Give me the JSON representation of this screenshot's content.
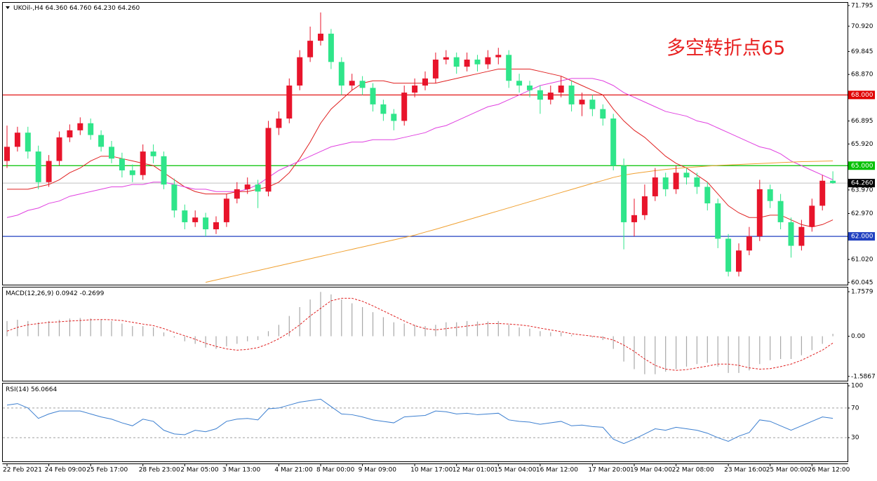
{
  "chart_data": [
    {
      "type": "candlestick",
      "symbol": "UKOil-,H4",
      "ohlc_labels": [
        "64.360",
        "64.760",
        "64.230",
        "64.260"
      ],
      "annotation": "多空转折点65",
      "annotation_color": "#e82020",
      "up_color": "#e8142b",
      "down_color": "#2fe58a",
      "categories": [
        "22 Feb 2021",
        null,
        null,
        null,
        "24 Feb 09:00",
        null,
        null,
        null,
        "25 Feb 17:00",
        null,
        null,
        null,
        null,
        "28 Feb 23:00",
        null,
        null,
        null,
        "2 Mar 05:00",
        null,
        null,
        null,
        "3 Mar 13:00",
        null,
        null,
        null,
        null,
        "4 Mar 21:00",
        null,
        null,
        null,
        "8 Mar 00:00",
        null,
        null,
        null,
        "9 Mar 09:00",
        null,
        null,
        null,
        null,
        "10 Mar 17:00",
        null,
        null,
        null,
        "12 Mar 01:00",
        null,
        null,
        null,
        "15 Mar 04:00",
        null,
        null,
        null,
        "16 Mar 12:00",
        null,
        null,
        null,
        null,
        "17 Mar 20:00",
        null,
        null,
        null,
        "19 Mar 04:00",
        null,
        null,
        null,
        "22 Mar 08:00",
        null,
        null,
        null,
        null,
        "23 Mar 16:00",
        null,
        null,
        null,
        "25 Mar 00:00",
        null,
        null,
        null,
        "26 Mar 12:00",
        null,
        null
      ],
      "open": [
        65.2,
        65.8,
        66.4,
        65.6,
        64.3,
        65.2,
        66.2,
        66.5,
        66.8,
        66.3,
        65.8,
        65.3,
        64.8,
        64.6,
        65.6,
        65.4,
        64.2,
        63.1,
        62.6,
        62.8,
        62.3,
        62.6,
        63.6,
        64.0,
        64.2,
        63.9,
        66.6,
        67.0,
        68.4,
        69.6,
        70.3,
        70.6,
        69.4,
        68.4,
        68.6,
        68.3,
        67.6,
        67.2,
        66.9,
        68.1,
        68.4,
        68.7,
        69.5,
        69.6,
        69.2,
        69.5,
        69.3,
        69.6,
        69.7,
        68.6,
        68.4,
        68.2,
        67.8,
        68.1,
        68.4,
        67.6,
        67.8,
        67.4,
        67.0,
        65.0,
        62.6,
        62.9,
        63.7,
        64.5,
        64.0,
        64.7,
        64.5,
        64.1,
        63.4,
        61.9,
        60.5,
        61.4,
        62.0,
        64.0,
        63.5,
        62.6,
        61.6,
        62.4,
        63.3,
        64.36
      ],
      "high": [
        66.7,
        66.65,
        66.65,
        65.85,
        65.45,
        66.45,
        66.75,
        67.05,
        67.0,
        66.5,
        66.05,
        65.55,
        65.05,
        65.9,
        65.9,
        65.6,
        64.45,
        63.35,
        63.1,
        63.0,
        62.85,
        63.8,
        64.3,
        64.5,
        64.4,
        66.9,
        67.3,
        68.7,
        69.9,
        70.9,
        71.5,
        70.8,
        69.6,
        68.9,
        68.8,
        68.5,
        67.8,
        67.4,
        68.4,
        68.7,
        69.0,
        69.8,
        69.9,
        69.8,
        69.8,
        69.7,
        69.9,
        70.0,
        69.9,
        68.9,
        68.6,
        68.4,
        68.4,
        68.8,
        68.6,
        68.1,
        68.0,
        67.6,
        67.2,
        65.3,
        63.6,
        64.2,
        64.9,
        64.7,
        65.0,
        64.9,
        64.7,
        64.3,
        63.6,
        62.1,
        61.7,
        62.4,
        64.4,
        64.2,
        63.8,
        62.8,
        62.7,
        63.6,
        64.6,
        64.76
      ],
      "low": [
        64.9,
        65.6,
        65.3,
        64.0,
        64.1,
        65.0,
        66.0,
        66.3,
        66.1,
        65.6,
        65.1,
        64.5,
        64.3,
        64.4,
        65.1,
        64.0,
        62.8,
        62.3,
        62.4,
        62.0,
        62.1,
        62.4,
        63.4,
        63.8,
        63.2,
        63.7,
        66.3,
        66.8,
        68.2,
        69.4,
        70.1,
        69.1,
        68.0,
        68.2,
        68.0,
        67.3,
        66.9,
        66.5,
        66.7,
        67.9,
        68.2,
        68.5,
        69.3,
        68.9,
        69.0,
        69.0,
        69.1,
        69.3,
        68.3,
        68.1,
        67.9,
        67.2,
        67.6,
        67.9,
        67.3,
        67.1,
        67.1,
        66.7,
        64.8,
        61.45,
        62.0,
        62.7,
        63.5,
        63.7,
        63.8,
        64.2,
        63.8,
        63.1,
        61.5,
        60.3,
        60.3,
        61.2,
        61.8,
        63.2,
        62.3,
        61.1,
        61.4,
        62.2,
        63.1,
        64.23
      ],
      "close": [
        65.8,
        66.4,
        65.6,
        64.3,
        65.2,
        66.2,
        66.5,
        66.8,
        66.3,
        65.8,
        65.3,
        64.8,
        64.6,
        65.6,
        65.4,
        64.2,
        63.1,
        62.6,
        62.8,
        62.3,
        62.6,
        63.6,
        64.0,
        64.2,
        63.9,
        66.6,
        67.0,
        68.4,
        69.6,
        70.3,
        70.6,
        69.4,
        68.4,
        68.6,
        68.3,
        67.6,
        67.2,
        66.9,
        68.1,
        68.4,
        68.7,
        69.5,
        69.6,
        69.2,
        69.5,
        69.3,
        69.6,
        69.7,
        68.6,
        68.4,
        68.2,
        67.8,
        68.1,
        68.4,
        67.6,
        67.8,
        67.4,
        67.0,
        65.0,
        62.6,
        62.9,
        63.7,
        64.5,
        64.0,
        64.7,
        64.5,
        64.1,
        63.4,
        61.9,
        60.5,
        61.4,
        62.0,
        64.0,
        63.5,
        62.6,
        61.6,
        62.4,
        63.3,
        64.36,
        64.26
      ],
      "series": [
        {
          "color": "#e02020",
          "values": [
            64.0,
            64.0,
            64.0,
            64.1,
            64.2,
            64.4,
            64.7,
            64.9,
            65.2,
            65.4,
            65.4,
            65.3,
            65.2,
            65.1,
            65.0,
            64.7,
            64.4,
            64.1,
            63.9,
            63.8,
            63.8,
            63.8,
            63.9,
            63.9,
            64.0,
            64.1,
            64.3,
            64.7,
            65.3,
            66.0,
            66.8,
            67.4,
            67.8,
            68.2,
            68.5,
            68.6,
            68.6,
            68.5,
            68.5,
            68.5,
            68.5,
            68.5,
            68.6,
            68.7,
            68.8,
            68.9,
            69.0,
            69.1,
            69.1,
            69.1,
            69.1,
            69.0,
            68.9,
            68.8,
            68.6,
            68.4,
            68.2,
            68.0,
            67.4,
            66.9,
            66.5,
            66.2,
            65.8,
            65.4,
            65.1,
            64.9,
            64.6,
            64.3,
            63.8,
            63.3,
            63.0,
            62.8,
            62.8,
            62.9,
            62.9,
            62.7,
            62.5,
            62.4,
            62.5,
            62.7
          ]
        },
        {
          "color": "#e040e0",
          "values": [
            62.8,
            62.9,
            63.1,
            63.2,
            63.4,
            63.5,
            63.7,
            63.8,
            63.9,
            64.0,
            64.1,
            64.1,
            64.2,
            64.2,
            64.3,
            64.3,
            64.2,
            64.1,
            64.0,
            64.0,
            63.9,
            63.9,
            63.9,
            64.0,
            64.2,
            64.5,
            64.8,
            65.0,
            65.2,
            65.4,
            65.6,
            65.8,
            65.9,
            66.0,
            66.0,
            66.1,
            66.1,
            66.1,
            66.2,
            66.3,
            66.4,
            66.6,
            66.7,
            66.9,
            67.1,
            67.3,
            67.5,
            67.6,
            67.8,
            68.0,
            68.2,
            68.4,
            68.5,
            68.6,
            68.7,
            68.7,
            68.7,
            68.6,
            68.4,
            68.1,
            67.9,
            67.7,
            67.5,
            67.3,
            67.2,
            67.1,
            66.9,
            66.8,
            66.6,
            66.4,
            66.2,
            66.0,
            65.8,
            65.7,
            65.5,
            65.2,
            65.0,
            64.8,
            64.6,
            64.4
          ]
        },
        {
          "color": "#f0a030",
          "values": [
            null,
            null,
            null,
            null,
            null,
            null,
            null,
            null,
            null,
            null,
            null,
            null,
            null,
            null,
            null,
            null,
            null,
            null,
            null,
            60.05,
            60.15,
            60.25,
            60.35,
            60.45,
            60.55,
            60.65,
            60.75,
            60.85,
            60.95,
            61.05,
            61.15,
            61.25,
            61.35,
            61.45,
            61.55,
            61.65,
            61.75,
            61.85,
            61.95,
            62.05,
            62.18,
            62.3,
            62.43,
            62.56,
            62.69,
            62.82,
            62.95,
            63.08,
            63.21,
            63.34,
            63.47,
            63.6,
            63.73,
            63.86,
            63.99,
            64.12,
            64.25,
            64.37,
            64.5,
            64.6,
            64.67,
            64.73,
            64.79,
            64.84,
            64.88,
            64.92,
            64.95,
            64.98,
            65.01,
            65.03,
            65.05,
            65.07,
            65.09,
            65.11,
            65.13,
            65.15,
            65.17,
            65.18,
            65.19,
            65.2
          ]
        }
      ],
      "ylim": [
        59.95,
        71.94
      ],
      "yticks": [
        71.795,
        {
          "value": 70.92,
          "label": "70.920"
        },
        69.845,
        {
          "value": 68.87,
          "label": "68.870"
        },
        66.895,
        {
          "value": 65.92,
          "label": "65.920"
        },
        {
          "value": 63.97,
          "label": "63.970"
        },
        {
          "value": 62.97,
          "label": "62.970"
        },
        {
          "value": 61.02,
          "label": "61.020"
        },
        60.045
      ],
      "hlines": [
        {
          "value": 68,
          "label": "68.000",
          "color": "#e00000"
        },
        {
          "value": 65,
          "label": "65.000",
          "color": "#00c000"
        },
        {
          "value": 62,
          "label": "62.000",
          "color": "#2040c0"
        }
      ],
      "price_line": {
        "value": 64.26,
        "label": "64.260"
      }
    },
    {
      "type": "macd",
      "title": "MACD(12,26,9)",
      "histogram": {
        "color": "#a8a8a8",
        "values": [
          0.6,
          0.65,
          0.6,
          0.55,
          0.6,
          0.65,
          0.7,
          0.72,
          0.7,
          0.65,
          0.6,
          0.5,
          0.4,
          0.4,
          0.35,
          0.15,
          -0.05,
          -0.2,
          -0.3,
          -0.45,
          -0.5,
          -0.4,
          -0.3,
          -0.2,
          -0.15,
          0.2,
          0.45,
          0.8,
          1.15,
          1.45,
          1.75,
          1.65,
          1.45,
          1.3,
          1.15,
          0.95,
          0.75,
          0.55,
          0.5,
          0.45,
          0.4,
          0.45,
          0.55,
          0.55,
          0.6,
          0.58,
          0.58,
          0.6,
          0.45,
          0.35,
          0.3,
          0.2,
          0.15,
          0.15,
          0.05,
          0.0,
          -0.05,
          -0.15,
          -0.5,
          -1.0,
          -1.3,
          -1.5,
          -1.5,
          -1.4,
          -1.3,
          -1.2,
          -1.1,
          -1.05,
          -1.2,
          -1.45,
          -1.45,
          -1.35,
          -1.1,
          -0.95,
          -0.9,
          -0.9,
          -0.75,
          -0.55,
          -0.3,
          0.0942
        ]
      },
      "signal": {
        "color": "#e02020",
        "values": [
          0.2,
          0.35,
          0.45,
          0.5,
          0.55,
          0.57,
          0.6,
          0.62,
          0.65,
          0.66,
          0.65,
          0.62,
          0.55,
          0.48,
          0.42,
          0.3,
          0.15,
          0.02,
          -0.12,
          -0.28,
          -0.4,
          -0.5,
          -0.55,
          -0.52,
          -0.45,
          -0.3,
          -0.1,
          0.15,
          0.45,
          0.8,
          1.1,
          1.4,
          1.5,
          1.5,
          1.38,
          1.2,
          1.0,
          0.8,
          0.6,
          0.42,
          0.3,
          0.25,
          0.3,
          0.35,
          0.4,
          0.45,
          0.5,
          0.5,
          0.48,
          0.45,
          0.4,
          0.32,
          0.25,
          0.18,
          0.1,
          0.05,
          0.0,
          -0.05,
          -0.15,
          -0.35,
          -0.6,
          -0.9,
          -1.15,
          -1.3,
          -1.35,
          -1.32,
          -1.25,
          -1.18,
          -1.1,
          -1.1,
          -1.15,
          -1.25,
          -1.3,
          -1.28,
          -1.2,
          -1.1,
          -0.95,
          -0.75,
          -0.55,
          -0.2699
        ]
      },
      "ylim": [
        -1.758,
        1.953
      ],
      "yticks": [
        1.7579,
        {
          "value": 0,
          "label": "0.00"
        },
        -1.5867
      ]
    },
    {
      "type": "line",
      "title": "RSI(14)",
      "color": "#3c7fd0",
      "values": [
        74,
        76,
        70,
        56,
        62,
        66,
        66,
        66,
        62,
        58,
        55,
        50,
        46,
        55,
        52,
        40,
        35,
        34,
        40,
        38,
        42,
        52,
        55,
        56,
        54,
        69,
        70,
        74,
        78,
        80,
        82,
        72,
        62,
        61,
        58,
        54,
        52,
        50,
        58,
        59,
        60,
        66,
        65,
        62,
        63,
        61,
        62,
        63,
        54,
        52,
        51,
        48,
        50,
        52,
        46,
        47,
        45,
        44,
        28,
        22,
        28,
        35,
        42,
        40,
        44,
        42,
        40,
        36,
        30,
        25,
        32,
        37,
        54,
        52,
        46,
        40,
        46,
        52,
        58,
        56.0664
      ],
      "ylim": [
        -2,
        104
      ],
      "yticks": [
        100,
        70,
        30
      ],
      "levels": [
        70,
        30
      ]
    }
  ]
}
